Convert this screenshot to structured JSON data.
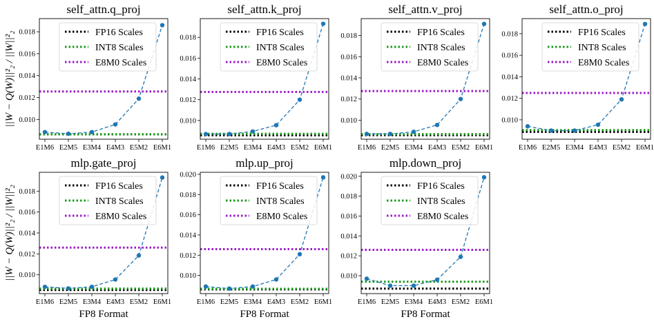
{
  "figure": {
    "xlabel": "FP8 Format",
    "ylabel": "||W − Q(W)||²₂ / ||W||²₂"
  },
  "colors": {
    "fp16": "#000000",
    "int8": "#1a9a1a",
    "e8m0": "#9b19c8",
    "data_line": "#1f77b4"
  },
  "chart_data": [
    {
      "type": "line",
      "title": "self_attn.q_proj",
      "categories": [
        "E1M6",
        "E2M5",
        "E3M4",
        "E4M3",
        "E5M2",
        "E6M1"
      ],
      "values": [
        0.00885,
        0.0087,
        0.00885,
        0.00955,
        0.0119,
        0.0186
      ],
      "baselines": [
        {
          "name": "FP16 Scales",
          "value": 0.00865
        },
        {
          "name": "INT8 Scales",
          "value": 0.00865
        },
        {
          "name": "E8M0 Scales",
          "value": 0.01255
        }
      ],
      "ylim": [
        0.0082,
        0.0192
      ],
      "yticks": [
        "0.010",
        "0.012",
        "0.014",
        "0.016",
        "0.018"
      ],
      "tickvals": [
        0.01,
        0.012,
        0.014,
        0.016,
        0.018
      ],
      "ylabel_shown": true,
      "xlabel_shown": false
    },
    {
      "type": "line",
      "title": "self_attn.k_proj",
      "categories": [
        "E1M6",
        "E2M5",
        "E3M4",
        "E4M3",
        "E5M2",
        "E6M1"
      ],
      "values": [
        0.0087,
        0.0087,
        0.00895,
        0.00955,
        0.012,
        0.0193
      ],
      "baselines": [
        {
          "name": "FP16 Scales",
          "value": 0.00858
        },
        {
          "name": "INT8 Scales",
          "value": 0.00872
        },
        {
          "name": "E8M0 Scales",
          "value": 0.01275
        }
      ],
      "ylim": [
        0.0082,
        0.0198
      ],
      "yticks": [
        "0.010",
        "0.012",
        "0.014",
        "0.016",
        "0.018"
      ],
      "tickvals": [
        0.01,
        0.012,
        0.014,
        0.016,
        0.018
      ],
      "ylabel_shown": false,
      "xlabel_shown": false
    },
    {
      "type": "line",
      "title": "self_attn.v_proj",
      "categories": [
        "E1M6",
        "E2M5",
        "E3M4",
        "E4M3",
        "E5M2",
        "E6M1"
      ],
      "values": [
        0.0087,
        0.0087,
        0.0089,
        0.00955,
        0.012,
        0.0191
      ],
      "baselines": [
        {
          "name": "FP16 Scales",
          "value": 0.00858
        },
        {
          "name": "INT8 Scales",
          "value": 0.00868
        },
        {
          "name": "E8M0 Scales",
          "value": 0.01275
        }
      ],
      "ylim": [
        0.0082,
        0.0196
      ],
      "yticks": [
        "0.010",
        "0.012",
        "0.014",
        "0.016",
        "0.018"
      ],
      "tickvals": [
        0.01,
        0.012,
        0.014,
        0.016,
        0.018
      ],
      "ylabel_shown": false,
      "xlabel_shown": false
    },
    {
      "type": "line",
      "title": "self_attn.o_proj",
      "categories": [
        "E1M6",
        "E2M5",
        "E3M4",
        "E4M3",
        "E5M2",
        "E6M1"
      ],
      "values": [
        0.0094,
        0.009,
        0.009,
        0.00955,
        0.0119,
        0.0189
      ],
      "baselines": [
        {
          "name": "FP16 Scales",
          "value": 0.00888
        },
        {
          "name": "INT8 Scales",
          "value": 0.00905
        },
        {
          "name": "E8M0 Scales",
          "value": 0.0125
        }
      ],
      "ylim": [
        0.0082,
        0.0194
      ],
      "yticks": [
        "0.010",
        "0.012",
        "0.014",
        "0.016",
        "0.018"
      ],
      "tickvals": [
        0.01,
        0.012,
        0.014,
        0.016,
        0.018
      ],
      "ylabel_shown": false,
      "xlabel_shown": false
    },
    {
      "type": "line",
      "title": "mlp.gate_proj",
      "categories": [
        "E1M6",
        "E2M5",
        "E3M4",
        "E4M3",
        "E5M2",
        "E6M1"
      ],
      "values": [
        0.00885,
        0.0087,
        0.00885,
        0.00955,
        0.01185,
        0.0193
      ],
      "baselines": [
        {
          "name": "FP16 Scales",
          "value": 0.00855
        },
        {
          "name": "INT8 Scales",
          "value": 0.00868
        },
        {
          "name": "E8M0 Scales",
          "value": 0.0126
        }
      ],
      "ylim": [
        0.0082,
        0.0198
      ],
      "yticks": [
        "0.010",
        "0.012",
        "0.014",
        "0.016",
        "0.018"
      ],
      "tickvals": [
        0.01,
        0.012,
        0.014,
        0.016,
        0.018
      ],
      "ylabel_shown": true,
      "xlabel_shown": false
    },
    {
      "type": "line",
      "title": "mlp.up_proj",
      "categories": [
        "E1M6",
        "E2M5",
        "E3M4",
        "E4M3",
        "E5M2",
        "E6M1"
      ],
      "values": [
        0.0089,
        0.0087,
        0.0089,
        0.0096,
        0.0121,
        0.0197
      ],
      "baselines": [
        {
          "name": "FP16 Scales",
          "value": 0.00862
        },
        {
          "name": "INT8 Scales",
          "value": 0.00868
        },
        {
          "name": "E8M0 Scales",
          "value": 0.0126
        }
      ],
      "ylim": [
        0.0082,
        0.0202
      ],
      "yticks": [
        "0.010",
        "0.012",
        "0.014",
        "0.016",
        "0.018",
        "0.020"
      ],
      "tickvals": [
        0.01,
        0.012,
        0.014,
        0.016,
        0.018,
        0.02
      ],
      "ylabel_shown": false,
      "xlabel_shown": true
    },
    {
      "type": "line",
      "title": "mlp.down_proj",
      "categories": [
        "E1M6",
        "E2M5",
        "E3M4",
        "E4M3",
        "E5M2",
        "E6M1"
      ],
      "values": [
        0.0097,
        0.009,
        0.009,
        0.0096,
        0.0119,
        0.0199
      ],
      "baselines": [
        {
          "name": "FP16 Scales",
          "value": 0.0087
        },
        {
          "name": "INT8 Scales",
          "value": 0.0094
        },
        {
          "name": "E8M0 Scales",
          "value": 0.0126
        }
      ],
      "ylim": [
        0.0082,
        0.0204
      ],
      "yticks": [
        "0.010",
        "0.012",
        "0.014",
        "0.016",
        "0.018",
        "0.020"
      ],
      "tickvals": [
        0.01,
        0.012,
        0.014,
        0.016,
        0.018,
        0.02
      ],
      "ylabel_shown": false,
      "xlabel_shown": true
    }
  ]
}
